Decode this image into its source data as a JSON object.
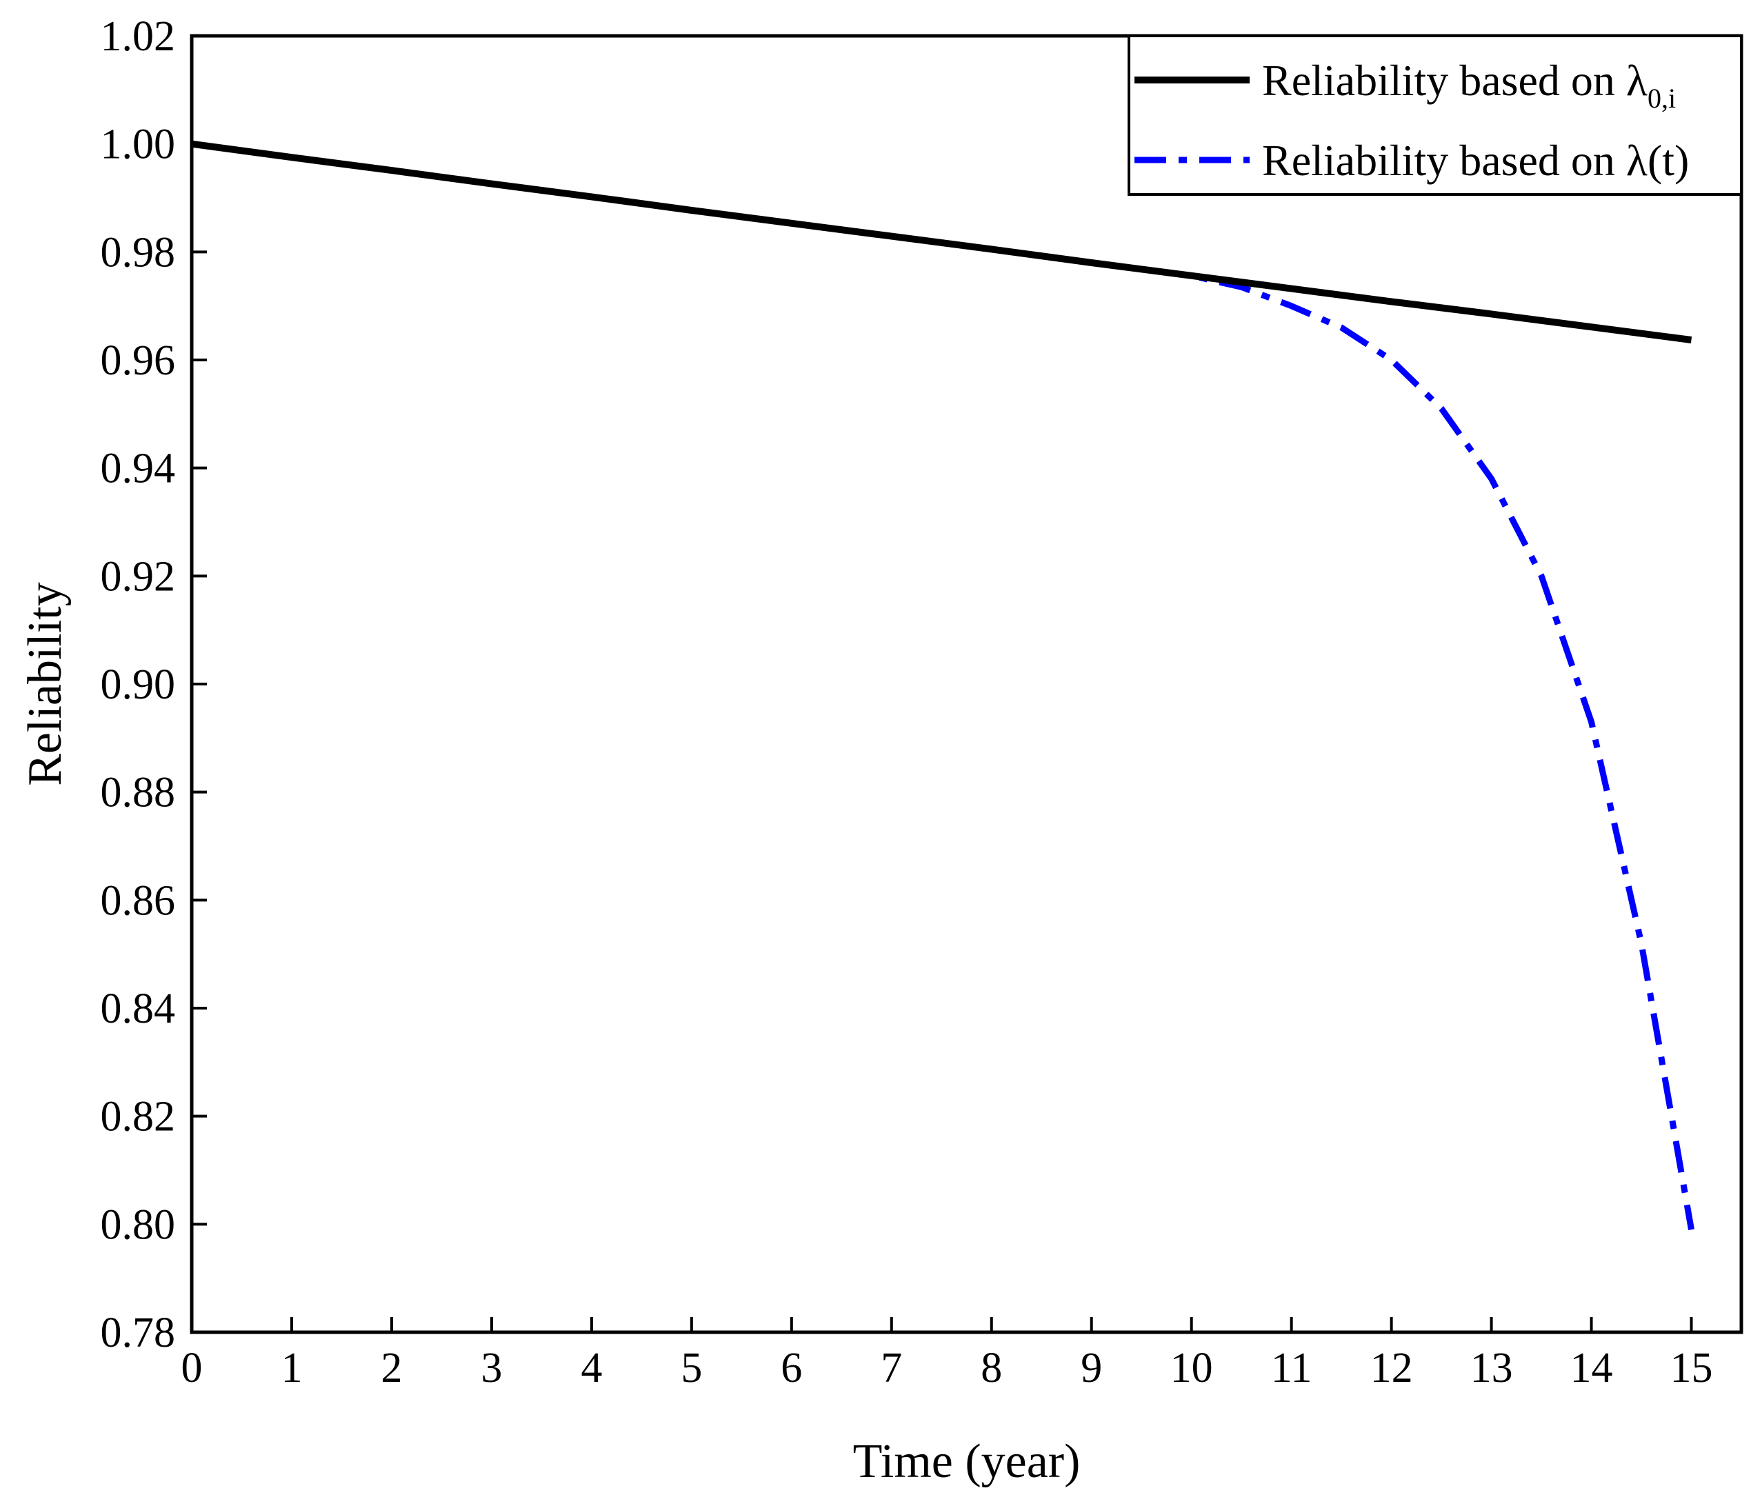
{
  "chart_data": {
    "type": "line",
    "title": "",
    "xlabel": "Time (year)",
    "ylabel": "Reliability",
    "xlim": [
      0,
      15.5
    ],
    "ylim": [
      0.78,
      1.02
    ],
    "xticks": [
      0,
      1,
      2,
      3,
      4,
      5,
      6,
      7,
      8,
      9,
      10,
      11,
      12,
      13,
      14,
      15
    ],
    "yticks": [
      0.78,
      0.8,
      0.82,
      0.84,
      0.86,
      0.88,
      0.9,
      0.92,
      0.94,
      0.96,
      0.98,
      1.0,
      1.02
    ],
    "ytick_labels": [
      "0.78",
      "0.80",
      "0.82",
      "0.84",
      "0.86",
      "0.88",
      "0.90",
      "0.92",
      "0.94",
      "0.96",
      "0.98",
      "1.00",
      "1.02"
    ],
    "grid": false,
    "legend_position": "top-right",
    "series": [
      {
        "name": "Reliability based on λ0,i",
        "legend_main": "Reliability based on λ",
        "legend_sub": "0,i",
        "color": "#000000",
        "style": "solid",
        "x": [
          0,
          1,
          2,
          3,
          4,
          5,
          6,
          7,
          8,
          9,
          10,
          11,
          12,
          13,
          14,
          15
        ],
        "y": [
          1.0,
          0.9975,
          0.9951,
          0.9926,
          0.9902,
          0.9877,
          0.9853,
          0.9829,
          0.9805,
          0.978,
          0.9756,
          0.9732,
          0.9708,
          0.9685,
          0.9661,
          0.9637
        ]
      },
      {
        "name": "Reliability based on λ(t)",
        "legend_main": "Reliability based on λ(t)",
        "legend_sub": "",
        "color": "#0000ff",
        "style": "dash-dot",
        "x": [
          0,
          1,
          2,
          3,
          4,
          5,
          6,
          7,
          8,
          9,
          10,
          10.5,
          11,
          11.5,
          12,
          12.5,
          13,
          13.5,
          14,
          14.5,
          15
        ],
        "y": [
          1.0,
          0.9975,
          0.9951,
          0.9926,
          0.9902,
          0.9877,
          0.9853,
          0.9829,
          0.9805,
          0.978,
          0.9756,
          0.9735,
          0.97,
          0.966,
          0.96,
          0.951,
          0.938,
          0.92,
          0.893,
          0.852,
          0.799
        ]
      }
    ]
  }
}
